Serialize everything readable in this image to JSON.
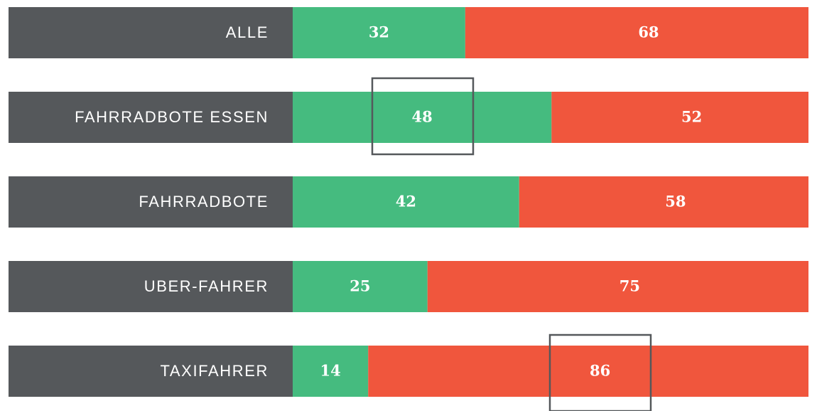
{
  "chart_data": {
    "type": "bar",
    "orientation": "horizontal",
    "stacked": true,
    "categories": [
      "ALLE",
      "FAHRRADBOTE ESSEN",
      "FAHRRADBOTE",
      "UBER-FAHRER",
      "TAXIFAHRER"
    ],
    "series": [
      {
        "color": "#45bb7f",
        "values": [
          32,
          48,
          42,
          25,
          14
        ]
      },
      {
        "color": "#f0563d",
        "values": [
          68,
          52,
          58,
          75,
          86
        ]
      }
    ]
  }
}
